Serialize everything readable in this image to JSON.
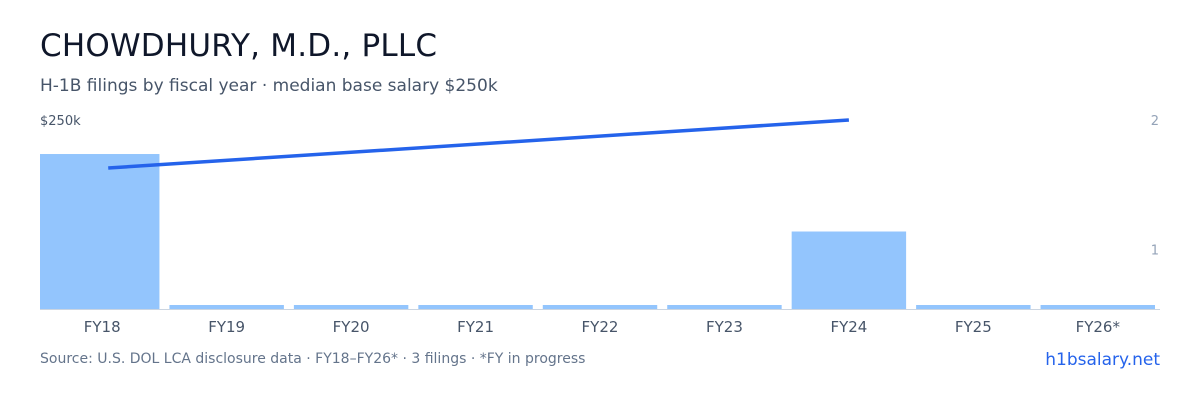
{
  "header": {
    "title": "CHOWDHURY, M.D., PLLC",
    "subtitle": "H-1B filings by fiscal year · median base salary $250k"
  },
  "footer": {
    "source": "Source: U.S. DOL LCA disclosure data · FY18–FY26* · 3 filings · *FY in progress",
    "brand": "h1bsalary.net"
  },
  "colors": {
    "bar": "#93c5fd",
    "line": "#2563eb",
    "axis": "#cbd5e1",
    "tick_text": "#94a3b8",
    "label_text": "#475569"
  },
  "chart_data": {
    "type": "bar",
    "categories": [
      "FY18",
      "FY19",
      "FY20",
      "FY21",
      "FY22",
      "FY23",
      "FY24",
      "FY25",
      "FY26*"
    ],
    "series": [
      {
        "type": "bar",
        "axis": "right",
        "values": [
          2,
          0,
          0,
          0,
          0,
          0,
          1,
          0,
          0
        ]
      },
      {
        "type": "line",
        "axis": "left",
        "x": [
          "FY18",
          "FY24"
        ],
        "values": [
          225000,
          250000
        ]
      }
    ],
    "left_axis": {
      "ticks": [
        250000
      ],
      "tick_labels": [
        "$250k"
      ]
    },
    "right_axis": {
      "ticks": [
        1,
        2
      ],
      "tick_labels": [
        "1",
        "2"
      ],
      "range": [
        0,
        2
      ]
    },
    "grid": false
  }
}
